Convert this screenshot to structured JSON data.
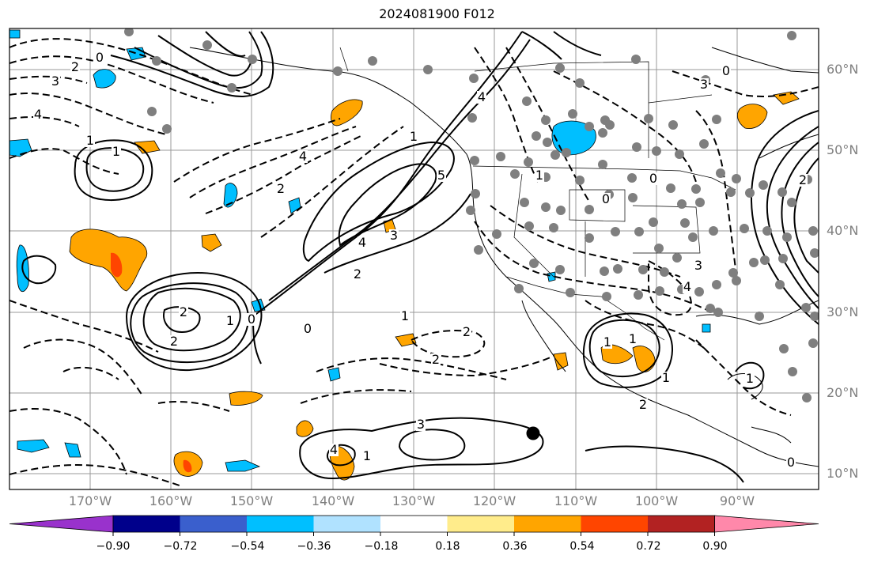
{
  "title": "2024081900 F012",
  "latitude_labels": [
    "60°N",
    "50°N",
    "40°N",
    "30°N",
    "20°N",
    "10°N"
  ],
  "longitude_labels": [
    "170°W",
    "160°W",
    "150°W",
    "140°W",
    "130°W",
    "120°W",
    "110°W",
    "100°W",
    "90°W"
  ],
  "colorbar": {
    "colors": [
      "#9932cc",
      "#00008b",
      "#3a5fcd",
      "#00bfff",
      "#b0e2ff",
      "#ffffff",
      "#ffec8b",
      "#ffa500",
      "#ff4500",
      "#b22222",
      "#ff88aa"
    ],
    "tick_labels": [
      "−0.90",
      "−0.72",
      "−0.54",
      "−0.36",
      "−0.18",
      "0.18",
      "0.36",
      "0.54",
      "0.72",
      "0.90"
    ]
  },
  "contour_labels": [
    "3",
    "4",
    "2",
    "0",
    "1",
    "1",
    "4",
    "2",
    "4",
    "3",
    "5",
    "4",
    "3",
    "2",
    "1",
    "0",
    "2",
    "2",
    "0",
    "1",
    "2",
    "2",
    "1",
    "4",
    "3",
    "1",
    "1",
    "0",
    "1",
    "1",
    "2",
    "1",
    "0",
    "0",
    "1",
    "4",
    "3",
    "2",
    "0"
  ],
  "layers": {
    "coastlines": "map-coastlines",
    "borders": "map-borders",
    "gridlines": "map-gridlines",
    "station_dots": "map-stations",
    "solid_contours": "positive-contours",
    "dashed_contours": "negative-contours",
    "shading": "anomaly-shading"
  },
  "marker": "black-dot-marker"
}
